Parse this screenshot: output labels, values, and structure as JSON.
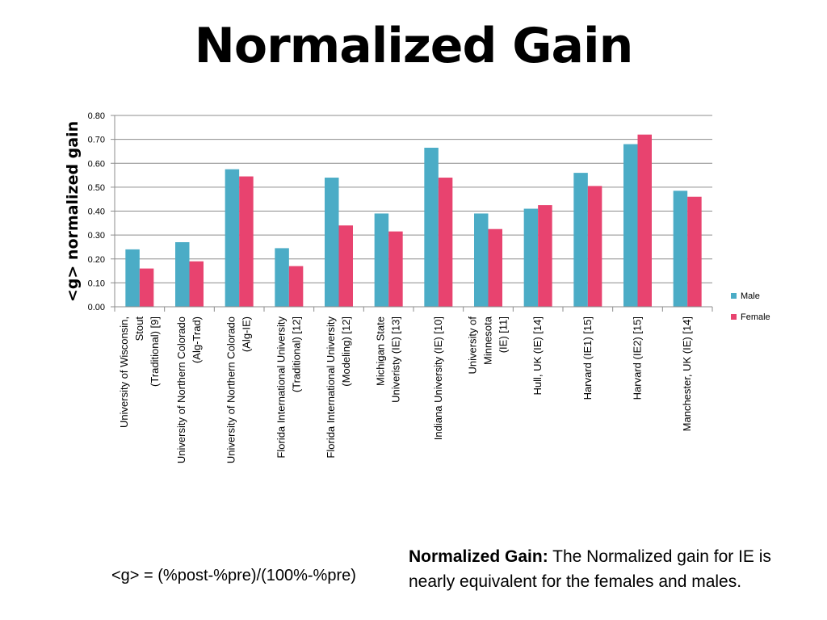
{
  "title": "Normalized Gain",
  "formula": "<g> = (%post-%pre)/(100%-%pre)",
  "note": {
    "heading": "Normalized Gain:",
    "body": " The Normalized gain for IE is nearly equivalent for the females and males."
  },
  "chart_data": {
    "type": "bar",
    "ylabel": "<g> normalized gain",
    "ylim": [
      0,
      0.8
    ],
    "yticks": [
      "0.00",
      "0.10",
      "0.20",
      "0.30",
      "0.40",
      "0.50",
      "0.60",
      "0.70",
      "0.80"
    ],
    "grid": true,
    "legend_position": "right",
    "categories": [
      [
        "University of Wisconsin,",
        "Stout",
        "(Traditional) [9]"
      ],
      [
        "University of Northern Colorado",
        "(Alg-Trad)"
      ],
      [
        "University of Northern Colorado",
        "(Alg-IE)"
      ],
      [
        "Florida International University",
        "(Traditional) [12]"
      ],
      [
        "Florida International University",
        "(Modeling) [12]"
      ],
      [
        "Michigan State",
        "Univeristy (IE) [13]"
      ],
      [
        "Indiana University (IE) [10]"
      ],
      [
        "University of",
        "Minnesota",
        "(IE) [11]"
      ],
      [
        "Hull, UK (IE) [14]"
      ],
      [
        "Harvard (IE1) [15]"
      ],
      [
        "Harvard (IE2) [15]"
      ],
      [
        "Manchester, UK (IE) [14]"
      ]
    ],
    "series": [
      {
        "name": "Male",
        "color": "#4bacc6",
        "values": [
          0.24,
          0.27,
          0.575,
          0.245,
          0.54,
          0.39,
          0.665,
          0.39,
          0.41,
          0.56,
          0.68,
          0.485
        ]
      },
      {
        "name": "Female",
        "color": "#e8436f",
        "values": [
          0.16,
          0.19,
          0.545,
          0.17,
          0.34,
          0.315,
          0.54,
          0.325,
          0.425,
          0.505,
          0.72,
          0.46
        ]
      }
    ]
  }
}
